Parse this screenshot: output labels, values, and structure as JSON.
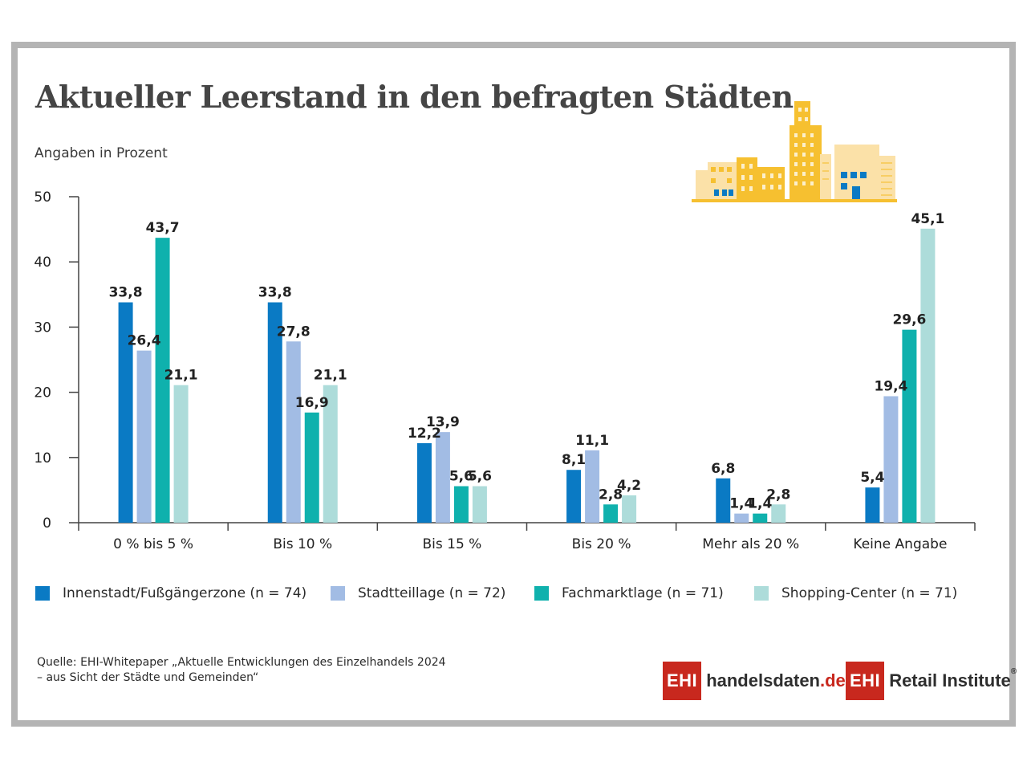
{
  "title": "Aktueller Leerstand in den befragten Städten",
  "subtitle": "Angaben in Prozent",
  "chart_data": {
    "type": "bar",
    "categories": [
      "0 % bis 5 %",
      "Bis 10 %",
      "Bis 15 %",
      "Bis 20 %",
      "Mehr als 20 %",
      "Keine Angabe"
    ],
    "series": [
      {
        "name": "Innenstadt/Fußgängerzone (n = 74)",
        "color": "#0a7ac4",
        "values": [
          33.8,
          33.8,
          12.2,
          8.1,
          6.8,
          5.4
        ],
        "labels": [
          "33,8",
          "33,8",
          "12,2",
          "8,1",
          "6,8",
          "5,4"
        ]
      },
      {
        "name": "Stadtteillage (n = 72)",
        "color": "#a2bce4",
        "values": [
          26.4,
          27.8,
          13.9,
          11.1,
          1.4,
          19.4
        ],
        "labels": [
          "26,4",
          "27,8",
          "13,9",
          "11,1",
          "1,4",
          "19,4"
        ]
      },
      {
        "name": "Fachmarktlage (n = 71)",
        "color": "#0fb1ad",
        "values": [
          43.7,
          16.9,
          5.6,
          2.8,
          1.4,
          29.6
        ],
        "labels": [
          "43,7",
          "16,9",
          "5,6",
          "2,8",
          "1,4",
          "29,6"
        ]
      },
      {
        "name": "Shopping-Center (n = 71)",
        "color": "#addcda",
        "values": [
          21.1,
          21.1,
          5.6,
          4.2,
          2.8,
          45.1
        ],
        "labels": [
          "21,1",
          "21,1",
          "5,6",
          "4,2",
          "2,8",
          "45,1"
        ]
      }
    ],
    "yticks": [
      0,
      10,
      20,
      30,
      40,
      50
    ],
    "ylim": [
      0,
      50
    ],
    "grid": false,
    "legend_position": "bottom"
  },
  "source": {
    "line1": "Quelle: EHI-Whitepaper „Aktuelle Entwicklungen des Einzelhandels 2024",
    "line2": "– aus Sicht der Städte und Gemeinden“"
  },
  "logos": {
    "logo1": {
      "box": "EHI",
      "text_main": "handelsdaten",
      "text_accent": ".de"
    },
    "logo2": {
      "box": "EHI",
      "text": "Retail Institute",
      "mark": "®"
    }
  },
  "icons": {
    "city": "city-buildings-icon"
  }
}
